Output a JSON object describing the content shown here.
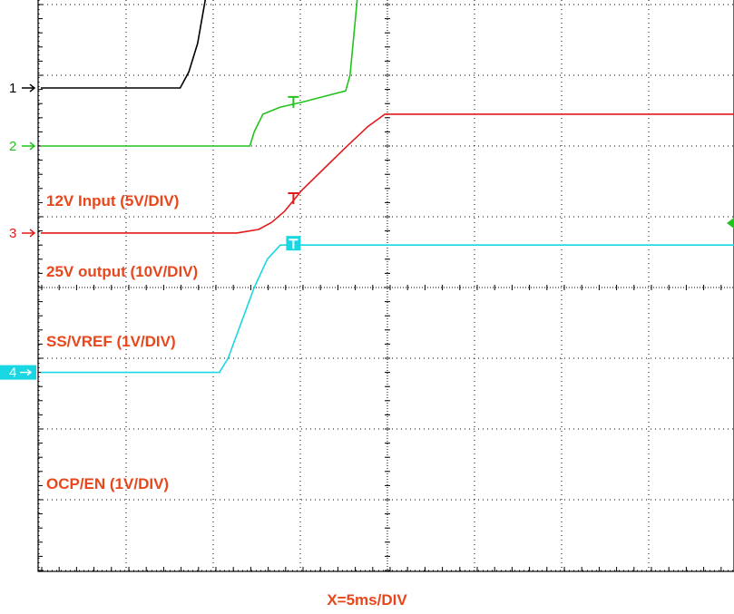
{
  "chart_data": {
    "type": "line",
    "title": "",
    "xlabel": "X=5ms/DIV",
    "ylabel": "",
    "grid": true,
    "x_divisions": 8,
    "y_divisions": 8,
    "x_range_div": [
      0,
      8
    ],
    "y_range_div": [
      0,
      8
    ],
    "colors": {
      "background": "#ffffff",
      "grid": "#000000",
      "label": "#e8471c"
    },
    "series": [
      {
        "name": "12V Input (5V/DIV)",
        "channel": "1",
        "color": "#000000",
        "marker_x": 5.8,
        "x": [
          0,
          3.2,
          3.4,
          3.6,
          3.8,
          4.0,
          4.2,
          4.5,
          4.8,
          5.1,
          5.4,
          5.8,
          6.2,
          6.6,
          7.0,
          7.4,
          7.8,
          8.2,
          8.6,
          9.0,
          10.0,
          11.0,
          12.0,
          13.0,
          14.0,
          15.0,
          16.0
        ],
        "y": [
          2.82,
          2.82,
          3.05,
          3.45,
          4.15,
          4.75,
          5.2,
          5.7,
          6.1,
          6.45,
          6.7,
          6.95,
          7.1,
          7.22,
          7.3,
          7.38,
          7.42,
          7.45,
          7.48,
          7.5,
          7.52,
          7.52,
          7.53,
          7.53,
          7.53,
          7.54,
          7.54
        ]
      },
      {
        "name": "25V output (10V/DIV)",
        "channel": "2",
        "color": "#22c31d",
        "marker_x": 5.8,
        "x": [
          0,
          4.8,
          4.9,
          5.1,
          5.5,
          6.0,
          6.5,
          7.0,
          7.1,
          7.3,
          7.6,
          8.0,
          16.0
        ],
        "y": [
          2.0,
          2.0,
          2.2,
          2.45,
          2.55,
          2.62,
          2.7,
          2.78,
          3.0,
          4.3,
          5.55,
          6.12,
          6.12
        ]
      },
      {
        "name": "SS/VREF (1V/DIV)",
        "channel": "3",
        "color": "#e31a1c",
        "marker_x": 5.8,
        "x": [
          0,
          4.5,
          5.0,
          5.3,
          5.6,
          6.0,
          6.5,
          7.0,
          7.5,
          7.9,
          8.0,
          16.0
        ],
        "y": [
          0.77,
          0.77,
          0.82,
          0.92,
          1.08,
          1.38,
          1.68,
          1.98,
          2.27,
          2.45,
          2.45,
          2.45
        ]
      },
      {
        "name": "OCP/EN (1V/DIV)",
        "channel": "4",
        "color": "#18d7e3",
        "marker_x": 5.8,
        "x": [
          0,
          4.1,
          4.3,
          4.6,
          4.9,
          5.2,
          5.5,
          5.8,
          16.0
        ],
        "y": [
          -1.2,
          -1.2,
          -1.0,
          -0.5,
          0.0,
          0.4,
          0.6,
          0.6,
          0.6
        ]
      }
    ]
  }
}
